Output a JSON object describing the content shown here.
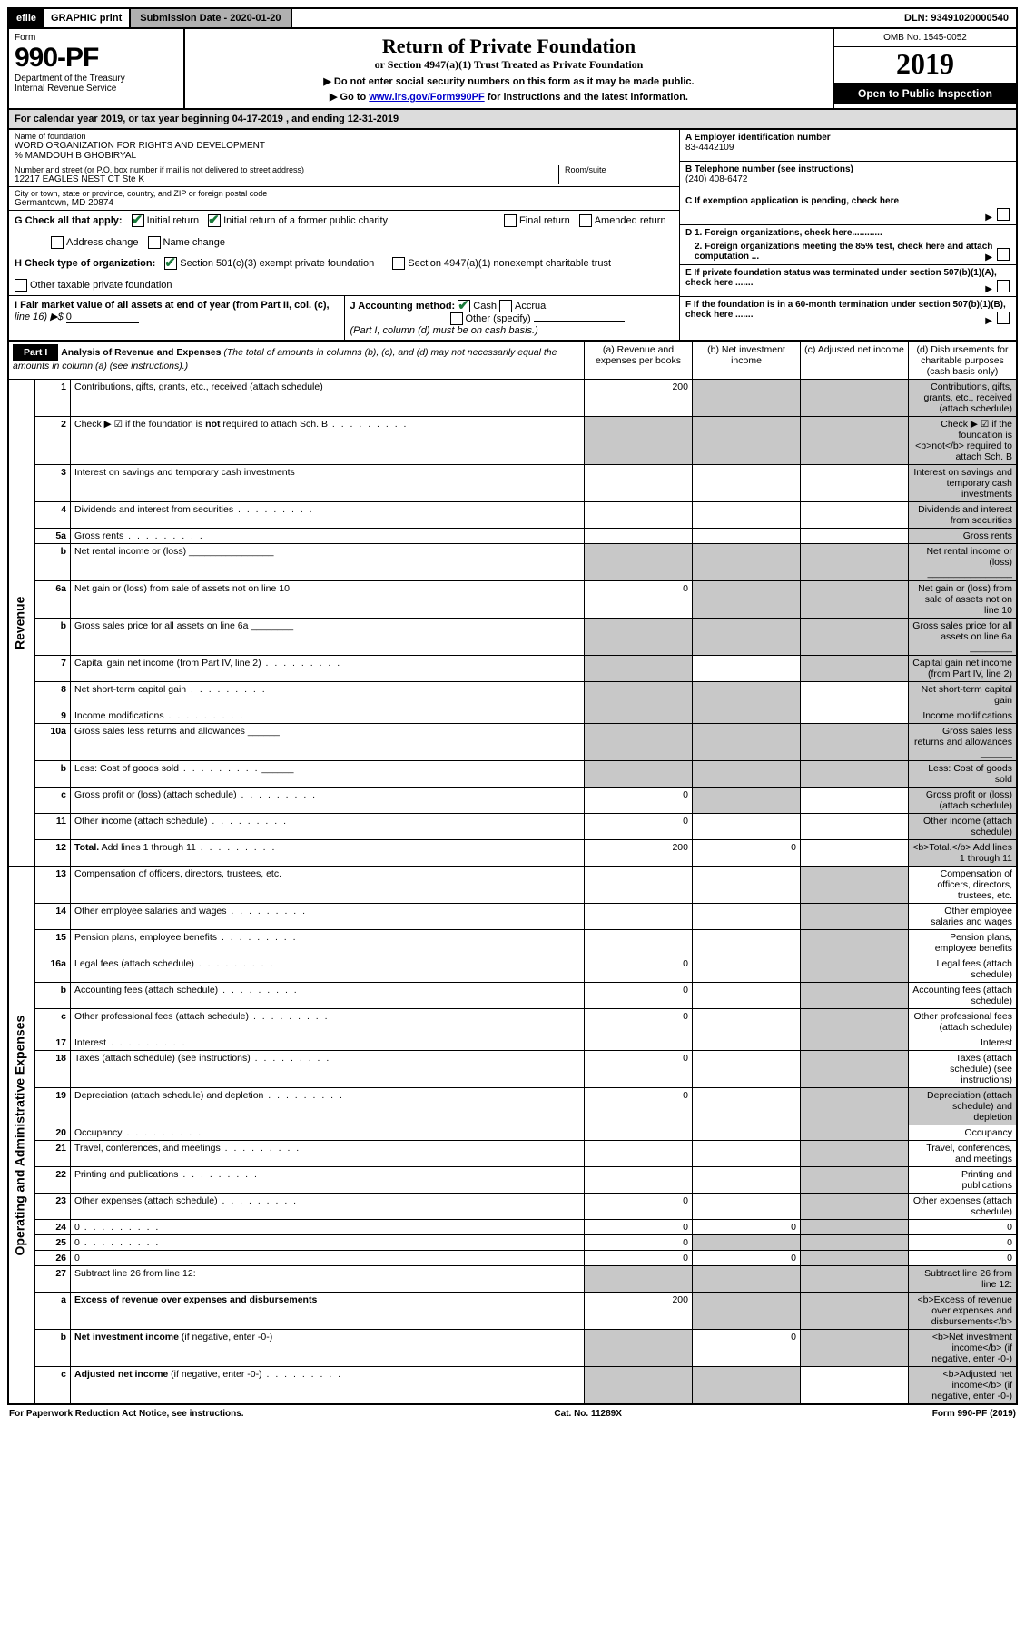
{
  "topbar": {
    "efile": "efile",
    "graphic": "GRAPHIC print",
    "subdate_label": "Submission Date - 2020-01-20",
    "dln": "DLN: 93491020000540"
  },
  "header": {
    "form_label": "Form",
    "form_no": "990-PF",
    "dept1": "Department of the Treasury",
    "dept2": "Internal Revenue Service",
    "title": "Return of Private Foundation",
    "subtitle": "or Section 4947(a)(1) Trust Treated as Private Foundation",
    "instr1": "▶ Do not enter social security numbers on this form as it may be made public.",
    "instr2_pre": "▶ Go to ",
    "instr2_link": "www.irs.gov/Form990PF",
    "instr2_post": " for instructions and the latest information.",
    "omb": "OMB No. 1545-0052",
    "year": "2019",
    "open": "Open to Public Inspection"
  },
  "calyear": "For calendar year 2019, or tax year beginning 04-17-2019                     , and ending 12-31-2019",
  "entity": {
    "name_label": "Name of foundation",
    "name": "WORD ORGANIZATION FOR RIGHTS AND DEVELOPMENT",
    "care_of": "% MAMDOUH B GHOBIRYAL",
    "addr_label": "Number and street (or P.O. box number if mail is not delivered to street address)",
    "addr": "12217 EAGLES NEST CT Ste K",
    "room_label": "Room/suite",
    "city_label": "City or town, state or province, country, and ZIP or foreign postal code",
    "city": "Germantown, MD  20874",
    "A_label": "A Employer identification number",
    "A_val": "83-4442109",
    "B_label": "B Telephone number (see instructions)",
    "B_val": "(240) 408-6472",
    "C_label": "C If exemption application is pending, check here",
    "D1": "D 1. Foreign organizations, check here............",
    "D2": "2. Foreign organizations meeting the 85% test, check here and attach computation ...",
    "E_label": "E  If private foundation status was terminated under section 507(b)(1)(A), check here .......",
    "F_label": "F  If the foundation is in a 60-month termination under section 507(b)(1)(B), check here .......",
    "G_label": "G Check all that apply:",
    "G_opts": [
      "Initial return",
      "Initial return of a former public charity",
      "Final return",
      "Amended return",
      "Address change",
      "Name change"
    ],
    "H_label": "H Check type of organization:",
    "H_opts": [
      "Section 501(c)(3) exempt private foundation",
      "Section 4947(a)(1) nonexempt charitable trust",
      "Other taxable private foundation"
    ],
    "I_label": "I Fair market value of all assets at end of year (from Part II, col. (c),",
    "I_line": "line 16) ▶$ ",
    "I_val": "0",
    "J_label": "J Accounting method:",
    "J_opts": [
      "Cash",
      "Accrual",
      "Other (specify)"
    ],
    "J_note": "(Part I, column (d) must be on cash basis.)"
  },
  "part1": {
    "header": "Part I",
    "title": "Analysis of Revenue and Expenses",
    "title_note": "(The total of amounts in columns (b), (c), and (d) may not necessarily equal the amounts in column (a) (see instructions).)",
    "col_a": "(a)    Revenue and expenses per books",
    "col_b": "(b)  Net investment income",
    "col_c": "(c)  Adjusted net income",
    "col_d": "(d)  Disbursements for charitable purposes (cash basis only)",
    "revenue_label": "Revenue",
    "expenses_label": "Operating and Administrative Expenses"
  },
  "rows_revenue": [
    {
      "n": "1",
      "d": "Contributions, gifts, grants, etc., received (attach schedule)",
      "a": "200",
      "shade": [
        "b",
        "c",
        "d"
      ]
    },
    {
      "n": "2",
      "d": "Check ▶ ☑ if the foundation is <b>not</b> required to attach Sch. B",
      "dots": true,
      "shade": [
        "a",
        "b",
        "c",
        "d"
      ]
    },
    {
      "n": "3",
      "d": "Interest on savings and temporary cash investments",
      "shade": [
        "d"
      ]
    },
    {
      "n": "4",
      "d": "Dividends and interest from securities",
      "dots": true,
      "shade": [
        "d"
      ]
    },
    {
      "n": "5a",
      "d": "Gross rents",
      "dots": true,
      "shade": [
        "d"
      ]
    },
    {
      "n": "b",
      "d": "Net rental income or (loss)  ________________",
      "shade": [
        "a",
        "b",
        "c",
        "d"
      ]
    },
    {
      "n": "6a",
      "d": "Net gain or (loss) from sale of assets not on line 10",
      "a": "0",
      "shade": [
        "b",
        "c",
        "d"
      ]
    },
    {
      "n": "b",
      "d": "Gross sales price for all assets on line 6a  ________",
      "shade": [
        "a",
        "b",
        "c",
        "d"
      ]
    },
    {
      "n": "7",
      "d": "Capital gain net income (from Part IV, line 2)",
      "dots": true,
      "shade": [
        "a",
        "c",
        "d"
      ]
    },
    {
      "n": "8",
      "d": "Net short-term capital gain",
      "dots": true,
      "shade": [
        "a",
        "b",
        "d"
      ]
    },
    {
      "n": "9",
      "d": "Income modifications",
      "dots": true,
      "shade": [
        "a",
        "b",
        "d"
      ]
    },
    {
      "n": "10a",
      "d": "Gross sales less returns and allowances  ______",
      "shade": [
        "a",
        "b",
        "c",
        "d"
      ]
    },
    {
      "n": "b",
      "d": "Less: Cost of goods sold",
      "dots": true,
      "after": "______",
      "shade": [
        "a",
        "b",
        "c",
        "d"
      ]
    },
    {
      "n": "c",
      "d": "Gross profit or (loss) (attach schedule)",
      "dots": true,
      "a": "0",
      "shade": [
        "b",
        "d"
      ]
    },
    {
      "n": "11",
      "d": "Other income (attach schedule)",
      "dots": true,
      "a": "0",
      "shade": [
        "d"
      ]
    },
    {
      "n": "12",
      "d": "<b>Total.</b> Add lines 1 through 11",
      "dots": true,
      "a": "200",
      "b": "0",
      "shade": [
        "d"
      ]
    }
  ],
  "rows_expenses": [
    {
      "n": "13",
      "d": "Compensation of officers, directors, trustees, etc.",
      "shade": [
        "c"
      ]
    },
    {
      "n": "14",
      "d": "Other employee salaries and wages",
      "dots": true,
      "shade": [
        "c"
      ]
    },
    {
      "n": "15",
      "d": "Pension plans, employee benefits",
      "dots": true,
      "shade": [
        "c"
      ]
    },
    {
      "n": "16a",
      "d": "Legal fees (attach schedule)",
      "dots": true,
      "a": "0",
      "shade": [
        "c"
      ]
    },
    {
      "n": "b",
      "d": "Accounting fees (attach schedule)",
      "dots": true,
      "a": "0",
      "shade": [
        "c"
      ]
    },
    {
      "n": "c",
      "d": "Other professional fees (attach schedule)",
      "dots": true,
      "a": "0",
      "shade": [
        "c"
      ]
    },
    {
      "n": "17",
      "d": "Interest",
      "dots": true,
      "shade": [
        "c"
      ]
    },
    {
      "n": "18",
      "d": "Taxes (attach schedule) (see instructions)",
      "dots": true,
      "a": "0",
      "shade": [
        "c"
      ]
    },
    {
      "n": "19",
      "d": "Depreciation (attach schedule) and depletion",
      "dots": true,
      "a": "0",
      "shade": [
        "c",
        "d"
      ]
    },
    {
      "n": "20",
      "d": "Occupancy",
      "dots": true,
      "shade": [
        "c"
      ]
    },
    {
      "n": "21",
      "d": "Travel, conferences, and meetings",
      "dots": true,
      "shade": [
        "c"
      ]
    },
    {
      "n": "22",
      "d": "Printing and publications",
      "dots": true,
      "shade": [
        "c"
      ]
    },
    {
      "n": "23",
      "d": "Other expenses (attach schedule)",
      "dots": true,
      "a": "0",
      "shade": [
        "c"
      ]
    },
    {
      "n": "24",
      "d": "0",
      "dots": true,
      "a": "0",
      "b": "0",
      "shade": [
        "c"
      ]
    },
    {
      "n": "25",
      "d": "0",
      "dots": true,
      "a": "0",
      "shade": [
        "b",
        "c"
      ]
    },
    {
      "n": "26",
      "d": "0",
      "a": "0",
      "b": "0",
      "shade": [
        "c"
      ]
    },
    {
      "n": "27",
      "d": "Subtract line 26 from line 12:",
      "shade": [
        "a",
        "b",
        "c",
        "d"
      ]
    },
    {
      "n": "a",
      "d": "<b>Excess of revenue over expenses and disbursements</b>",
      "a": "200",
      "shade": [
        "b",
        "c",
        "d"
      ]
    },
    {
      "n": "b",
      "d": "<b>Net investment income</b> (if negative, enter -0-)",
      "b": "0",
      "shade": [
        "a",
        "c",
        "d"
      ]
    },
    {
      "n": "c",
      "d": "<b>Adjusted net income</b> (if negative, enter -0-)",
      "dots": true,
      "shade": [
        "a",
        "b",
        "d"
      ]
    }
  ],
  "footer": {
    "left": "For Paperwork Reduction Act Notice, see instructions.",
    "center": "Cat. No. 11289X",
    "right": "Form 990-PF (2019)"
  }
}
